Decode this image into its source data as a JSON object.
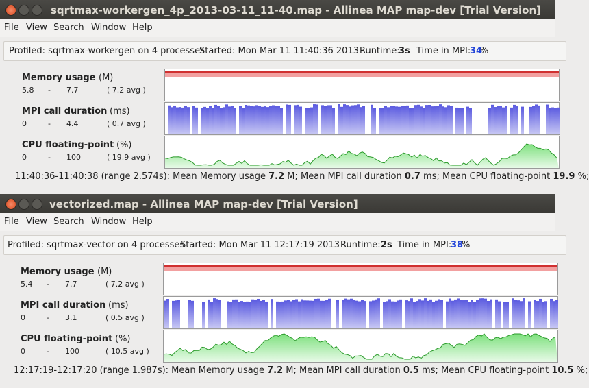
{
  "windows": [
    {
      "title": "sqrtmax-workergen_4p_2013-03-11_11-40.map - Allinea MAP map-dev [Trial Version]",
      "menu": [
        "File",
        "View",
        "Search",
        "Window",
        "Help"
      ],
      "info": {
        "profiled": "Profiled: sqrtmax-workergen on 4 processes",
        "started": "Started: Mon Mar 11 11:40:36 2013",
        "runtime_label": "Runtime:",
        "runtime": "3s",
        "mpi_label": "Time in MPI:",
        "mpi": "34",
        "mpi_unit": "%"
      },
      "metrics": [
        {
          "name": "Memory usage",
          "unit": "(M)",
          "min": "5.8",
          "sep": "-",
          "max": "7.7",
          "avg": "( 7.2 avg )"
        },
        {
          "name": "MPI call duration",
          "unit": "(ms)",
          "min": "0",
          "sep": "-",
          "max": "4.4",
          "avg": "( 0.7 avg )"
        },
        {
          "name": "CPU floating-point",
          "unit": "(%)",
          "min": "0",
          "sep": "-",
          "max": "100",
          "avg": "( 19.9 avg )"
        }
      ],
      "summary": [
        "11:40:36-11:40:38 (range 2.574s): Mean Memory usage ",
        "7.2",
        " M; Mean MPI call duration ",
        "0.7",
        " ms; Mean CPU floating-point ",
        "19.9",
        " %;"
      ]
    },
    {
      "title": "vectorized.map - Allinea MAP map-dev [Trial Version]",
      "menu": [
        "File",
        "View",
        "Search",
        "Window",
        "Help"
      ],
      "info": {
        "profiled": "Profiled: sqrtmax-vector on 4 processes",
        "started": "Started: Mon Mar 11 12:17:19 2013",
        "runtime_label": "Runtime:",
        "runtime": "2s",
        "mpi_label": "Time in MPI:",
        "mpi": "38",
        "mpi_unit": "%"
      },
      "metrics": [
        {
          "name": "Memory usage",
          "unit": "(M)",
          "min": "5.4",
          "sep": "-",
          "max": "7.7",
          "avg": "( 7.2 avg )"
        },
        {
          "name": "MPI call duration",
          "unit": "(ms)",
          "min": "0",
          "sep": "-",
          "max": "3.1",
          "avg": "( 0.5 avg )"
        },
        {
          "name": "CPU floating-point",
          "unit": "(%)",
          "min": "0",
          "sep": "-",
          "max": "100",
          "avg": "( 10.5 avg )"
        }
      ],
      "summary": [
        "12:17:19-12:17:20 (range 1.987s): Mean Memory usage ",
        "7.2",
        " M; Mean MPI call duration ",
        "0.5",
        " ms; Mean CPU floating-point ",
        "10.5",
        " %;"
      ]
    }
  ]
}
